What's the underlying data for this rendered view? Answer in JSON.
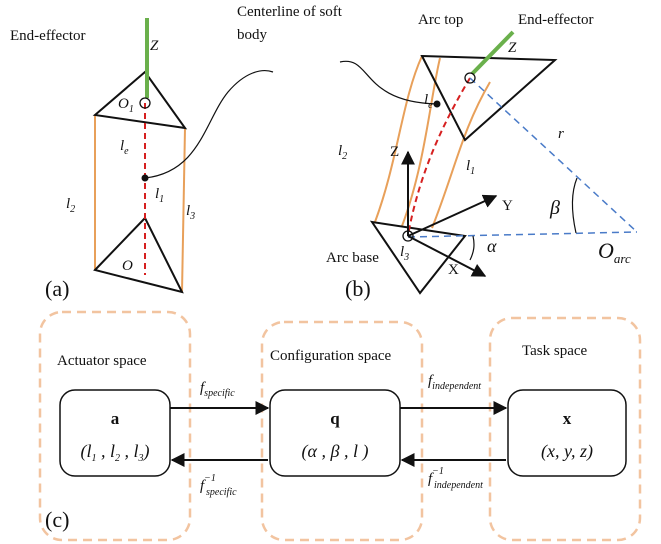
{
  "panel_a": {
    "end_effector": "End-effector",
    "z": "Z",
    "o1": {
      "base": "O",
      "sub": "1"
    },
    "le": {
      "base": "l",
      "sub": "e"
    },
    "l1": {
      "base": "l",
      "sub": "1"
    },
    "l2": {
      "base": "l",
      "sub": "2"
    },
    "l3": {
      "base": "l",
      "sub": "3"
    },
    "o": "O",
    "label": "(a)"
  },
  "centerline": [
    "Centerline of soft",
    "body"
  ],
  "panel_b": {
    "arc_top": "Arc top",
    "end_effector": "End-effector",
    "z_top": "Z",
    "le": {
      "base": "l",
      "sub": "e"
    },
    "l1": {
      "base": "l",
      "sub": "1"
    },
    "l2": {
      "base": "l",
      "sub": "2"
    },
    "l3": {
      "base": "l",
      "sub": "3"
    },
    "axis_z": "Z",
    "axis_y": "Y",
    "axis_x": "X",
    "r": "r",
    "beta": "β",
    "alpha": "α",
    "o_arc": {
      "base": "O",
      "sub": "arc"
    },
    "arc_base": "Arc base",
    "label": "(b)"
  },
  "panel_c": {
    "spaces": [
      {
        "title": "Actuator space",
        "symbol": "a",
        "tuple": [
          "(",
          "l",
          "1",
          " , ",
          "l",
          "2",
          " , ",
          "l",
          "3",
          ")"
        ]
      },
      {
        "title": "Configuration space",
        "symbol": "q",
        "tuple": [
          "(",
          "α",
          " , ",
          "β",
          " , ",
          "l",
          " )"
        ]
      },
      {
        "title": "Task space",
        "symbol": "x",
        "tuple": [
          "(",
          "x, y, z",
          ")"
        ]
      }
    ],
    "f_specific": {
      "base": "f",
      "sub": "specific"
    },
    "f_specific_inv": {
      "base": "f",
      "sup": "−1",
      "sub": "specific"
    },
    "f_independent": {
      "base": "f",
      "sub": "independent"
    },
    "f_independent_inv": {
      "base": "f",
      "sup": "−1",
      "sub": "independent"
    },
    "label": "(c)"
  }
}
